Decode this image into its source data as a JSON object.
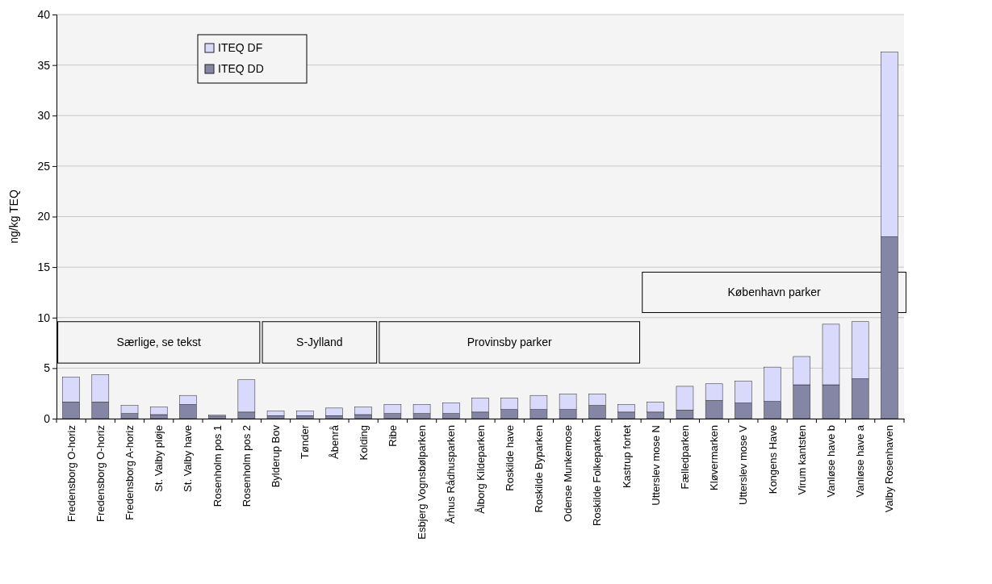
{
  "chart_data": {
    "type": "bar",
    "stacked": true,
    "ylabel": "ng/kg TEQ",
    "categories": [
      "Fredensborg O-horiz",
      "Fredensborg O-horiz",
      "Fredensborg A-horiz",
      "St. Valby pløje",
      "St. Valby have",
      "Rosenholm pos 1",
      "Rosenholm pos 2",
      "Bylderup Bov",
      "Tønder",
      "Åbenrå",
      "Kolding",
      "Ribe",
      "Esbjerg Vognsbølparken",
      "Århus Rådhusparken",
      "Ålborg Kildeparken",
      "Roskilde have",
      "Roskilde Byparken",
      "Odense Munkemose",
      "Roskilde Folkeparken",
      "Kastrup fortet",
      "Utterslev mose N",
      "Fælledparken",
      "Kløvermarken",
      "Utterslev mose V",
      "Kongens Have",
      "Virum kantsten",
      "Vanløse have b",
      "Vanløse have a",
      "Valby Rosenhaven"
    ],
    "series": [
      {
        "name": "ITEQ DD",
        "color": "#8585a5",
        "values": [
          1.65,
          1.65,
          0.5,
          0.4,
          1.4,
          0.25,
          0.65,
          0.3,
          0.3,
          0.3,
          0.4,
          0.5,
          0.5,
          0.5,
          0.65,
          0.9,
          0.9,
          0.9,
          1.3,
          0.65,
          0.65,
          0.85,
          1.8,
          1.55,
          1.7,
          3.35,
          3.35,
          3.95,
          18
        ]
      },
      {
        "name": "ITEQ DF",
        "color": "#d9d9fb",
        "values": [
          2.45,
          2.7,
          0.8,
          0.75,
          0.9,
          0.1,
          3.2,
          0.45,
          0.45,
          0.75,
          0.75,
          0.9,
          0.9,
          1.05,
          1.4,
          1.15,
          1.4,
          1.55,
          1.15,
          0.75,
          1.0,
          2.35,
          1.65,
          2.15,
          3.4,
          2.8,
          6.0,
          5.65,
          18.3
        ]
      }
    ],
    "ylim": [
      0,
      40
    ],
    "yticks": [
      0,
      5,
      10,
      15,
      20,
      25,
      30,
      35,
      40
    ],
    "grid": "y",
    "legend": "top left",
    "annotations": [
      "Særlige, se tekst",
      "S-Jylland",
      "Provinsby parker",
      "København parker"
    ]
  }
}
